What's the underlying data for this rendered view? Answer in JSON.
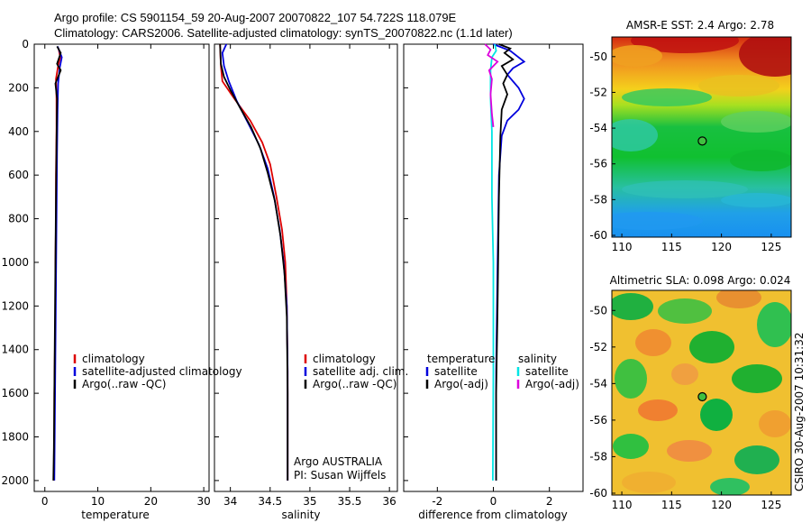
{
  "header": {
    "line1": "Argo profile: CS 5901154_59 20-Aug-2007 20070822_107 54.722S 118.079E",
    "line2": "Climatology: CARS2006. Satellite-adjusted climatology: synTS_20070822.nc (1.1d later)"
  },
  "side_label": "CSIRO 30-Aug-2007 10:31:32",
  "chart_data": [
    {
      "type": "line",
      "id": "temperature",
      "xlabel": "temperature",
      "ylabel": "",
      "xlim": [
        -2,
        31
      ],
      "ylim": [
        2050,
        0
      ],
      "xticks": [
        0,
        10,
        20,
        30
      ],
      "yticks": [
        0,
        200,
        400,
        600,
        800,
        1000,
        1200,
        1400,
        1600,
        1800,
        2000
      ],
      "legend": {
        "placement": "lower-right",
        "entries": [
          {
            "label": "climatology",
            "color": "#dd0000"
          },
          {
            "label": "satellite-adjusted climatology",
            "color": "#0000dd"
          },
          {
            "label": "Argo(..raw -QC)",
            "color": "#000000"
          }
        ]
      },
      "series": [
        {
          "name": "climatology",
          "color": "#dd0000",
          "points": [
            [
              2.6,
              20
            ],
            [
              2.9,
              60
            ],
            [
              2.5,
              100
            ],
            [
              2.1,
              160
            ],
            [
              2.2,
              250
            ],
            [
              2.2,
              400
            ],
            [
              2.1,
              600
            ],
            [
              2.1,
              800
            ],
            [
              2.0,
              1000
            ],
            [
              2.0,
              1200
            ],
            [
              1.9,
              1400
            ],
            [
              1.8,
              1600
            ],
            [
              1.8,
              1800
            ],
            [
              1.7,
              2000
            ]
          ]
        },
        {
          "name": "satellite-adjusted climatology",
          "color": "#0000dd",
          "points": [
            [
              2.4,
              10
            ],
            [
              3.2,
              60
            ],
            [
              2.8,
              110
            ],
            [
              2.5,
              180
            ],
            [
              2.4,
              300
            ],
            [
              2.3,
              500
            ],
            [
              2.2,
              800
            ],
            [
              2.1,
              1100
            ],
            [
              2.0,
              1400
            ],
            [
              1.9,
              1700
            ],
            [
              1.8,
              2000
            ]
          ]
        },
        {
          "name": "Argo(..raw -QC)",
          "color": "#000000",
          "points": [
            [
              2.3,
              10
            ],
            [
              3.0,
              40
            ],
            [
              2.3,
              90
            ],
            [
              3.0,
              120
            ],
            [
              2.0,
              180
            ],
            [
              2.3,
              250
            ],
            [
              2.2,
              450
            ],
            [
              2.1,
              700
            ],
            [
              2.0,
              1000
            ],
            [
              1.9,
              1300
            ],
            [
              1.8,
              1600
            ],
            [
              1.7,
              1850
            ],
            [
              1.6,
              2000
            ]
          ]
        }
      ]
    },
    {
      "type": "line",
      "id": "salinity",
      "xlabel": "salinity",
      "xlim": [
        33.8,
        36.1
      ],
      "ylim": [
        2050,
        0
      ],
      "xticks": [
        34,
        34.5,
        35,
        35.5,
        36
      ],
      "annotation": [
        "Argo AUSTRALIA",
        "PI: Susan Wijffels"
      ],
      "legend": {
        "placement": "lower-right",
        "entries": [
          {
            "label": "climatology",
            "color": "#dd0000"
          },
          {
            "label": "satellite adj. clim.",
            "color": "#0000dd"
          },
          {
            "label": "Argo(..raw -QC)",
            "color": "#000000"
          }
        ]
      },
      "series": [
        {
          "name": "climatology",
          "color": "#dd0000",
          "points": [
            [
              33.87,
              0
            ],
            [
              33.88,
              100
            ],
            [
              33.9,
              170
            ],
            [
              34.05,
              250
            ],
            [
              34.25,
              350
            ],
            [
              34.4,
              450
            ],
            [
              34.5,
              550
            ],
            [
              34.58,
              700
            ],
            [
              34.65,
              850
            ],
            [
              34.69,
              1000
            ],
            [
              34.71,
              1200
            ],
            [
              34.72,
              1500
            ],
            [
              34.72,
              1800
            ],
            [
              34.72,
              2000
            ]
          ]
        },
        {
          "name": "satellite adj. clim.",
          "color": "#0000dd",
          "points": [
            [
              33.95,
              0
            ],
            [
              33.9,
              40
            ],
            [
              33.92,
              100
            ],
            [
              33.98,
              170
            ],
            [
              34.08,
              260
            ],
            [
              34.22,
              360
            ],
            [
              34.36,
              460
            ],
            [
              34.47,
              570
            ],
            [
              34.55,
              700
            ],
            [
              34.62,
              850
            ],
            [
              34.67,
              1000
            ],
            [
              34.71,
              1200
            ],
            [
              34.72,
              1500
            ],
            [
              34.72,
              1800
            ],
            [
              34.72,
              2000
            ]
          ]
        },
        {
          "name": "Argo(..raw -QC)",
          "color": "#000000",
          "points": [
            [
              33.87,
              0
            ],
            [
              33.88,
              90
            ],
            [
              33.92,
              150
            ],
            [
              34.0,
              210
            ],
            [
              34.12,
              290
            ],
            [
              34.26,
              380
            ],
            [
              34.38,
              480
            ],
            [
              34.47,
              590
            ],
            [
              34.56,
              720
            ],
            [
              34.63,
              880
            ],
            [
              34.68,
              1050
            ],
            [
              34.71,
              1250
            ],
            [
              34.72,
              1600
            ],
            [
              34.72,
              2000
            ]
          ]
        }
      ]
    },
    {
      "type": "line",
      "id": "difference",
      "xlabel": "difference from climatology",
      "xlim": [
        -3.2,
        3.2
      ],
      "ylim": [
        2050,
        0
      ],
      "xticks": [
        -2,
        0,
        2
      ],
      "legend": {
        "placement": "lower",
        "entries": [
          {
            "label": "temperature",
            "color": null
          },
          {
            "label": "satellite",
            "color": "#0000dd"
          },
          {
            "label": "Argo(-adj)",
            "color": "#000000"
          },
          {
            "label": "salinity",
            "color": null
          },
          {
            "label": "satellite",
            "color": "#00e5e5"
          },
          {
            "label": "Argo(-adj)",
            "color": "#dd00dd"
          }
        ]
      },
      "series": [
        {
          "name": "temperature satellite",
          "color": "#0000dd",
          "points": [
            [
              0.0,
              0
            ],
            [
              0.6,
              30
            ],
            [
              1.1,
              80
            ],
            [
              0.7,
              110
            ],
            [
              0.5,
              140
            ],
            [
              0.9,
              200
            ],
            [
              1.1,
              250
            ],
            [
              0.9,
              300
            ],
            [
              0.5,
              350
            ],
            [
              0.3,
              420
            ],
            [
              0.2,
              600
            ],
            [
              0.15,
              1000
            ],
            [
              0.1,
              1500
            ],
            [
              0.1,
              2000
            ]
          ]
        },
        {
          "name": "temperature Argo(-adj)",
          "color": "#000000",
          "points": [
            [
              0.2,
              0
            ],
            [
              0.6,
              20
            ],
            [
              0.4,
              40
            ],
            [
              0.7,
              70
            ],
            [
              0.3,
              100
            ],
            [
              0.5,
              140
            ],
            [
              0.35,
              180
            ],
            [
              0.5,
              230
            ],
            [
              0.3,
              300
            ],
            [
              0.25,
              420
            ],
            [
              0.2,
              700
            ],
            [
              0.15,
              1200
            ],
            [
              0.1,
              1600
            ],
            [
              0.1,
              2000
            ]
          ]
        },
        {
          "name": "salinity satellite",
          "color": "#00e5e5",
          "points": [
            [
              0.05,
              0
            ],
            [
              0.1,
              30
            ],
            [
              -0.05,
              60
            ],
            [
              -0.1,
              120
            ],
            [
              -0.1,
              250
            ],
            [
              -0.05,
              400
            ],
            [
              -0.05,
              700
            ],
            [
              0.0,
              1000
            ],
            [
              0.0,
              1500
            ],
            [
              -0.02,
              2000
            ]
          ]
        },
        {
          "name": "salinity Argo(-adj)",
          "color": "#dd00dd",
          "points": [
            [
              -0.3,
              0
            ],
            [
              -0.1,
              25
            ],
            [
              -0.2,
              50
            ],
            [
              0.15,
              80
            ],
            [
              -0.15,
              120
            ],
            [
              -0.05,
              160
            ],
            [
              -0.1,
              230
            ],
            [
              -0.05,
              320
            ],
            [
              0.0,
              380
            ]
          ]
        }
      ]
    },
    {
      "type": "heatmap",
      "id": "sst-map",
      "title": "AMSR-E SST: 2.4 Argo: 2.78",
      "xlim": [
        109,
        127
      ],
      "ylim": [
        -60.1,
        -48.9
      ],
      "xticks": [
        110,
        115,
        120,
        125
      ],
      "yticks": [
        -50,
        -52,
        -54,
        -56,
        -58,
        -60
      ],
      "float_position": {
        "lon": 118.079,
        "lat": -54.722
      }
    },
    {
      "type": "heatmap",
      "id": "sla-map",
      "title": "Altimetric SLA: 0.098 Argo: 0.024",
      "xlim": [
        109,
        127
      ],
      "ylim": [
        -60.1,
        -48.9
      ],
      "xticks": [
        110,
        115,
        120,
        125
      ],
      "yticks": [
        -50,
        -52,
        -54,
        -56,
        -58,
        -60
      ],
      "float_position": {
        "lon": 118.079,
        "lat": -54.722
      }
    }
  ]
}
